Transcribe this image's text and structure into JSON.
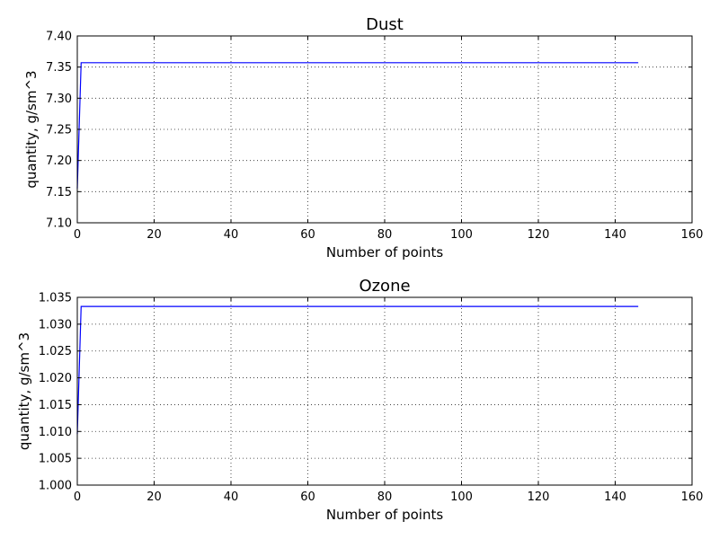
{
  "chart_data": [
    {
      "type": "line",
      "title": "Dust",
      "xlabel": "Number of points",
      "ylabel": "quantity, g/sm^3",
      "xlim": [
        0,
        160
      ],
      "ylim": [
        7.1,
        7.4
      ],
      "xticks": [
        0,
        20,
        40,
        60,
        80,
        100,
        120,
        140,
        160
      ],
      "yticks": [
        7.1,
        7.15,
        7.2,
        7.25,
        7.3,
        7.35,
        7.4
      ],
      "ytick_labels": [
        "7.10",
        "7.15",
        "7.20",
        "7.25",
        "7.30",
        "7.35",
        "7.40"
      ],
      "grid": true,
      "color": "#0000ff",
      "x": [
        0,
        1,
        146
      ],
      "y": [
        7.155,
        7.357,
        7.357
      ]
    },
    {
      "type": "line",
      "title": "Ozone",
      "xlabel": "Number of points",
      "ylabel": "quantity, g/sm^3",
      "xlim": [
        0,
        160
      ],
      "ylim": [
        1.0,
        1.035
      ],
      "xticks": [
        0,
        20,
        40,
        60,
        80,
        100,
        120,
        140,
        160
      ],
      "yticks": [
        1.0,
        1.005,
        1.01,
        1.015,
        1.02,
        1.025,
        1.03,
        1.035
      ],
      "ytick_labels": [
        "1.000",
        "1.005",
        "1.010",
        "1.015",
        "1.020",
        "1.025",
        "1.030",
        "1.035"
      ],
      "grid": true,
      "color": "#0000ff",
      "x": [
        0,
        1,
        146
      ],
      "y": [
        1.0095,
        1.0333,
        1.0333
      ]
    }
  ]
}
